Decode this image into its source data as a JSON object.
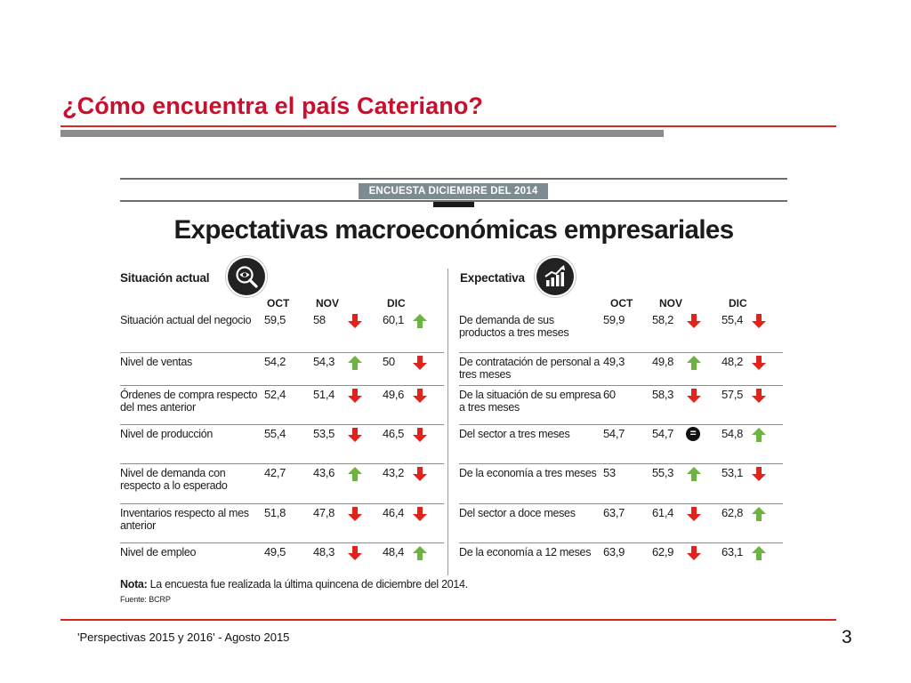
{
  "slide": {
    "title": "¿Cómo encuentra el país Cateriano?",
    "footer": "'Perspectivas 2015 y 2016' - Agosto 2015",
    "page_number": "3"
  },
  "infographic": {
    "banner": "ENCUESTA DICIEMBRE DEL 2014",
    "heading": "Expectativas macroeconómicas empresariales",
    "note_label": "Nota:",
    "note_text": " La encuesta fue realizada la última quincena de diciembre del 2014.",
    "source": "Fuente: BCRP",
    "colors": {
      "up": "#6cb33f",
      "down": "#e0231b",
      "equal": "#111111"
    },
    "left_panel": {
      "title": "Situación actual",
      "icon": "magnifier-eye-icon",
      "columns": [
        "OCT",
        "NOV",
        "DIC"
      ],
      "rows": [
        {
          "label": "Situación actual del negocio",
          "oct": "59,5",
          "nov": "58",
          "nov_trend": "down",
          "dic": "60,1",
          "dic_trend": "up"
        },
        {
          "label": "Nivel de ventas",
          "oct": "54,2",
          "nov": "54,3",
          "nov_trend": "up",
          "dic": "50",
          "dic_trend": "down"
        },
        {
          "label": "Órdenes de compra respecto del mes anterior",
          "oct": "52,4",
          "nov": "51,4",
          "nov_trend": "down",
          "dic": "49,6",
          "dic_trend": "down"
        },
        {
          "label": "Nivel de producción",
          "oct": "55,4",
          "nov": "53,5",
          "nov_trend": "down",
          "dic": "46,5",
          "dic_trend": "down"
        },
        {
          "label": "Nivel de demanda con respecto a lo esperado",
          "oct": "42,7",
          "nov": "43,6",
          "nov_trend": "up",
          "dic": "43,2",
          "dic_trend": "down"
        },
        {
          "label": "Inventarios respecto al mes anterior",
          "oct": "51,8",
          "nov": "47,8",
          "nov_trend": "down",
          "dic": "46,4",
          "dic_trend": "down"
        },
        {
          "label": "Nivel de empleo",
          "oct": "49,5",
          "nov": "48,3",
          "nov_trend": "down",
          "dic": "48,4",
          "dic_trend": "up"
        }
      ]
    },
    "right_panel": {
      "title": "Expectativa",
      "icon": "growth-chart-icon",
      "columns": [
        "OCT",
        "NOV",
        "DIC"
      ],
      "rows": [
        {
          "label": "De demanda de sus productos a tres meses",
          "oct": "59,9",
          "nov": "58,2",
          "nov_trend": "down",
          "dic": "55,4",
          "dic_trend": "down"
        },
        {
          "label": "De contratación de personal a tres meses",
          "oct": "49,3",
          "nov": "49,8",
          "nov_trend": "up",
          "dic": "48,2",
          "dic_trend": "down"
        },
        {
          "label": "De la situación de su empresa a tres meses",
          "oct": "60",
          "nov": "58,3",
          "nov_trend": "down",
          "dic": "57,5",
          "dic_trend": "down"
        },
        {
          "label": "Del sector a tres meses",
          "oct": "54,7",
          "nov": "54,7",
          "nov_trend": "equal",
          "dic": "54,8",
          "dic_trend": "up"
        },
        {
          "label": "De la economía a tres meses",
          "oct": "53",
          "nov": "55,3",
          "nov_trend": "up",
          "dic": "53,1",
          "dic_trend": "down"
        },
        {
          "label": "Del sector a doce meses",
          "oct": "63,7",
          "nov": "61,4",
          "nov_trend": "down",
          "dic": "62,8",
          "dic_trend": "up"
        },
        {
          "label": "De la economía a 12 meses",
          "oct": "63,9",
          "nov": "62,9",
          "nov_trend": "down",
          "dic": "63,1",
          "dic_trend": "up"
        }
      ]
    }
  }
}
